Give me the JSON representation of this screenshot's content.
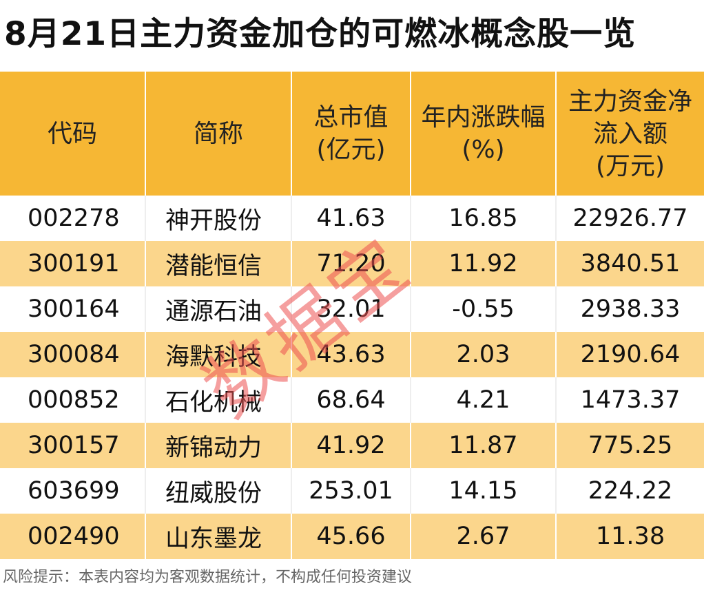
{
  "title": "8月21日主力资金加仓的可燃冰概念股一览",
  "header": {
    "code": [
      "代码"
    ],
    "name": [
      "简称"
    ],
    "market_cap": [
      "总市值",
      "(亿元)"
    ],
    "ytd_change": [
      "年内涨跌幅",
      "(%)"
    ],
    "net_inflow": [
      "主力资金净",
      "流入额",
      "(万元)"
    ]
  },
  "rows": [
    {
      "code": "002278",
      "name": "神开股份",
      "market_cap": "41.63",
      "ytd_change": "16.85",
      "net_inflow": "22926.77"
    },
    {
      "code": "300191",
      "name": "潜能恒信",
      "market_cap": "71.20",
      "ytd_change": "11.92",
      "net_inflow": "3840.51"
    },
    {
      "code": "300164",
      "name": "通源石油",
      "market_cap": "32.01",
      "ytd_change": "-0.55",
      "net_inflow": "2938.33"
    },
    {
      "code": "300084",
      "name": "海默科技",
      "market_cap": "43.63",
      "ytd_change": "2.03",
      "net_inflow": "2190.64"
    },
    {
      "code": "000852",
      "name": "石化机械",
      "market_cap": "68.64",
      "ytd_change": "4.21",
      "net_inflow": "1473.37"
    },
    {
      "code": "300157",
      "name": "新锦动力",
      "market_cap": "41.92",
      "ytd_change": "11.87",
      "net_inflow": "775.25"
    },
    {
      "code": "603699",
      "name": "纽威股份",
      "market_cap": "253.01",
      "ytd_change": "14.15",
      "net_inflow": "224.22"
    },
    {
      "code": "002490",
      "name": "山东墨龙",
      "market_cap": "45.66",
      "ytd_change": "2.67",
      "net_inflow": "11.38"
    }
  ],
  "watermark": "数据宝",
  "footer": "风险提示：本表内容均为客观数据统计，不构成任何投资建议",
  "colors": {
    "header_bg": "#f6b734",
    "stripe_bg": "#fbd68c",
    "watermark": "#ec5050"
  }
}
